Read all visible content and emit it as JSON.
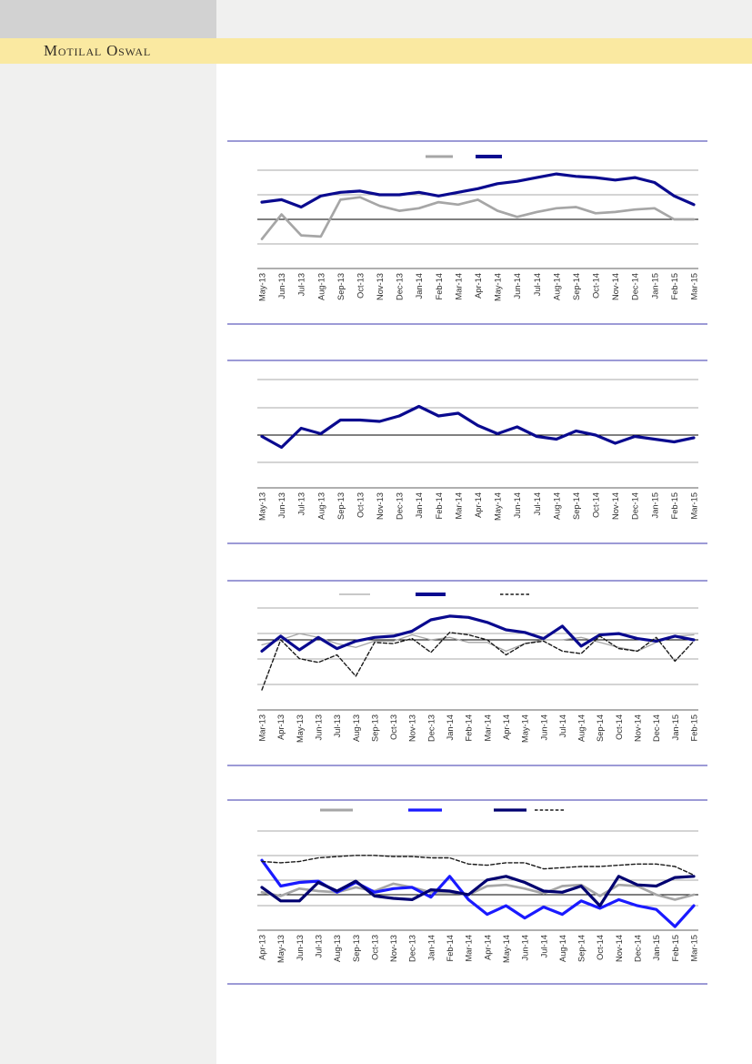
{
  "brand": {
    "name": "Motilal Oswal"
  },
  "header": {
    "band_color": "#fae9a1"
  },
  "colors": {
    "separator": "#7c79c8",
    "gridline": "#a9a9a9",
    "zero_line": "#000000",
    "gray_series": "#a6a6a6",
    "navy_series": "#0a0a8f",
    "dark_navy_series": "#000070",
    "bright_blue_series": "#1a1aff",
    "dashed_series": "#1a1a1a"
  },
  "chart_data": [
    {
      "id": "chart-1",
      "type": "line",
      "title": "",
      "categories": [
        "May-13",
        "Jun-13",
        "Jul-13",
        "Aug-13",
        "Sep-13",
        "Oct-13",
        "Nov-13",
        "Dec-13",
        "Jan-14",
        "Feb-14",
        "Mar-14",
        "Apr-14",
        "May-14",
        "Jun-14",
        "Jul-14",
        "Aug-14",
        "Sep-14",
        "Oct-14",
        "Nov-14",
        "Dec-14",
        "Jan-15",
        "Feb-15",
        "Mar-15"
      ],
      "y_axis": {
        "labels_visible": false,
        "zero_line": true,
        "ylim": [
          -2,
          2.2
        ],
        "gridline_values": [
          2,
          1,
          -1
        ],
        "units_note": "values estimated in gridline units (no y labels shown)"
      },
      "legend_position": "top",
      "legend": [
        {
          "label": "",
          "color": "#a6a6a6",
          "style": "solid"
        },
        {
          "label": "",
          "color": "#0a0a8f",
          "style": "solid"
        }
      ],
      "series": [
        {
          "name": "gray-series",
          "color": "#a6a6a6",
          "style": "solid",
          "weight": "medium",
          "values": [
            -0.8,
            0.2,
            -0.65,
            -0.7,
            0.8,
            0.9,
            0.55,
            0.35,
            0.45,
            0.7,
            0.6,
            0.8,
            0.35,
            0.1,
            0.3,
            0.45,
            0.5,
            0.25,
            0.3,
            0.4,
            0.45,
            0.0,
            0.0
          ]
        },
        {
          "name": "navy-series",
          "color": "#0a0a8f",
          "style": "solid",
          "weight": "thick",
          "values": [
            0.7,
            0.8,
            0.5,
            0.95,
            1.1,
            1.15,
            1.0,
            1.0,
            1.1,
            0.95,
            1.1,
            1.25,
            1.45,
            1.55,
            1.7,
            1.85,
            1.75,
            1.7,
            1.6,
            1.7,
            1.5,
            0.95,
            0.6
          ]
        }
      ]
    },
    {
      "id": "chart-2",
      "type": "line",
      "title": "",
      "categories": [
        "May-13",
        "Jun-13",
        "Jul-13",
        "Aug-13",
        "Sep-13",
        "Oct-13",
        "Nov-13",
        "Dec-13",
        "Jan-14",
        "Feb-14",
        "Mar-14",
        "Apr-14",
        "May-14",
        "Jun-14",
        "Jul-14",
        "Aug-14",
        "Sep-14",
        "Oct-14",
        "Nov-14",
        "Dec-14",
        "Jan-15",
        "Feb-15",
        "Mar-15"
      ],
      "y_axis": {
        "labels_visible": false,
        "zero_line": true,
        "ylim": [
          -2,
          2
        ],
        "gridline_values": [
          2,
          1,
          -1
        ],
        "units_note": "values estimated in gridline units (no y labels shown)"
      },
      "legend_position": "none",
      "legend": [],
      "series": [
        {
          "name": "navy-series",
          "color": "#0a0a8f",
          "style": "solid",
          "weight": "thick",
          "values": [
            -0.05,
            -0.45,
            0.25,
            0.05,
            0.55,
            0.55,
            0.5,
            0.7,
            1.05,
            0.7,
            0.8,
            0.35,
            0.05,
            0.3,
            -0.05,
            -0.15,
            0.15,
            0.0,
            -0.3,
            -0.05,
            -0.15,
            -0.25,
            -0.1
          ]
        }
      ]
    },
    {
      "id": "chart-3",
      "type": "line",
      "title": "",
      "categories": [
        "Mar-13",
        "Apr-13",
        "May-13",
        "Jun-13",
        "Jul-13",
        "Aug-13",
        "Sep-13",
        "Oct-13",
        "Nov-13",
        "Dec-13",
        "Jan-14",
        "Feb-14",
        "Mar-14",
        "Apr-14",
        "May-14",
        "Jun-14",
        "Jul-14",
        "Aug-14",
        "Sep-14",
        "Oct-14",
        "Nov-14",
        "Dec-14",
        "Jan-15",
        "Feb-15"
      ],
      "y_axis": {
        "labels_visible": false,
        "zero_line": true,
        "ylim": [
          -2.8,
          1.3
        ],
        "gridline_values": [
          1.27,
          0.33,
          -0.69,
          -1.78
        ],
        "units_note": "values estimated in gridline units (no y labels shown)"
      },
      "legend_position": "top",
      "legend": [
        {
          "label": "",
          "color": "#a6a6a6",
          "style": "solid"
        },
        {
          "label": "",
          "color": "#0a0a8f",
          "style": "solid"
        },
        {
          "label": "",
          "color": "#1a1a1a",
          "style": "dashed"
        }
      ],
      "series": [
        {
          "name": "gray-series",
          "color": "#a6a6a6",
          "style": "solid",
          "weight": "thin",
          "values": [
            -0.2,
            0.0,
            0.25,
            0.1,
            -0.15,
            -0.3,
            -0.05,
            -0.05,
            0.2,
            0.0,
            0.1,
            -0.1,
            -0.1,
            -0.45,
            -0.15,
            0.0,
            0.0,
            0.1,
            -0.1,
            -0.3,
            -0.45,
            -0.1,
            0.15,
            0.2
          ]
        },
        {
          "name": "navy-series",
          "color": "#0a0a8f",
          "style": "solid",
          "weight": "thick",
          "values": [
            -0.45,
            0.15,
            -0.4,
            0.1,
            -0.35,
            -0.05,
            0.1,
            0.15,
            0.35,
            0.8,
            0.95,
            0.9,
            0.7,
            0.4,
            0.3,
            0.05,
            0.55,
            -0.25,
            0.2,
            0.25,
            0.05,
            -0.05,
            0.15,
            0.0
          ]
        },
        {
          "name": "dashed-series",
          "color": "#1a1a1a",
          "style": "dashed",
          "weight": "dashed",
          "values": [
            -2.0,
            0.0,
            -0.75,
            -0.9,
            -0.6,
            -1.45,
            -0.1,
            -0.15,
            0.05,
            -0.5,
            0.3,
            0.2,
            0.0,
            -0.6,
            -0.15,
            -0.05,
            -0.45,
            -0.55,
            0.15,
            -0.35,
            -0.45,
            0.1,
            -0.85,
            -0.05
          ]
        }
      ]
    },
    {
      "id": "chart-4",
      "type": "line",
      "title": "",
      "categories": [
        "Apr-13",
        "May-13",
        "Jun-13",
        "Jul-13",
        "Aug-13",
        "Sep-13",
        "Oct-13",
        "Nov-13",
        "Dec-13",
        "Jan-14",
        "Feb-14",
        "Mar-14",
        "Apr-14",
        "May-14",
        "Jun-14",
        "Jul-14",
        "Aug-14",
        "Sep-14",
        "Oct-14",
        "Nov-14",
        "Dec-14",
        "Jan-15",
        "Feb-15",
        "Mar-15"
      ],
      "y_axis": {
        "labels_visible": false,
        "zero_line": true,
        "ylim": [
          -1.5,
          2.6
        ],
        "gridline_values": [
          2.59,
          1.59,
          0.59,
          -0.44
        ],
        "units_note": "values estimated in gridline units (no y labels shown)"
      },
      "legend_position": "top",
      "legend": [
        {
          "label": "",
          "color": "#a6a6a6",
          "style": "solid"
        },
        {
          "label": "",
          "color": "#1a1aff",
          "style": "solid"
        },
        {
          "label": "",
          "color": "#000070",
          "style": "solid"
        },
        {
          "label": "",
          "color": "#1a1a1a",
          "style": "dashed"
        }
      ],
      "series": [
        {
          "name": "gray-series",
          "color": "#a6a6a6",
          "style": "solid",
          "weight": "medium",
          "values": [
            0.1,
            -0.05,
            0.25,
            0.15,
            0.1,
            0.3,
            0.15,
            0.45,
            0.3,
            0.1,
            0.1,
            0.0,
            0.35,
            0.4,
            0.25,
            0.05,
            0.35,
            0.4,
            -0.05,
            0.4,
            0.35,
            0.0,
            -0.2,
            0.0
          ]
        },
        {
          "name": "bright-blue-series",
          "color": "#1a1aff",
          "style": "solid",
          "weight": "thick",
          "values": [
            1.4,
            0.35,
            0.5,
            0.55,
            0.1,
            0.5,
            0.1,
            0.25,
            0.3,
            -0.1,
            0.75,
            -0.2,
            -0.8,
            -0.45,
            -0.95,
            -0.5,
            -0.8,
            -0.25,
            -0.55,
            -0.2,
            -0.45,
            -0.6,
            -1.3,
            -0.45
          ]
        },
        {
          "name": "dark-navy-series",
          "color": "#000070",
          "style": "solid",
          "weight": "thick",
          "values": [
            0.3,
            -0.25,
            -0.25,
            0.5,
            0.15,
            0.55,
            -0.05,
            -0.15,
            -0.2,
            0.2,
            0.15,
            0.0,
            0.6,
            0.75,
            0.5,
            0.15,
            0.1,
            0.35,
            -0.45,
            0.75,
            0.4,
            0.35,
            0.7,
            0.75
          ]
        },
        {
          "name": "dashed-series",
          "color": "#1a1a1a",
          "style": "dashed",
          "weight": "dashed",
          "values": [
            1.35,
            1.3,
            1.35,
            1.5,
            1.55,
            1.6,
            1.6,
            1.55,
            1.55,
            1.5,
            1.5,
            1.25,
            1.2,
            1.3,
            1.3,
            1.05,
            1.1,
            1.15,
            1.15,
            1.2,
            1.25,
            1.25,
            1.15,
            0.8
          ]
        }
      ]
    }
  ]
}
